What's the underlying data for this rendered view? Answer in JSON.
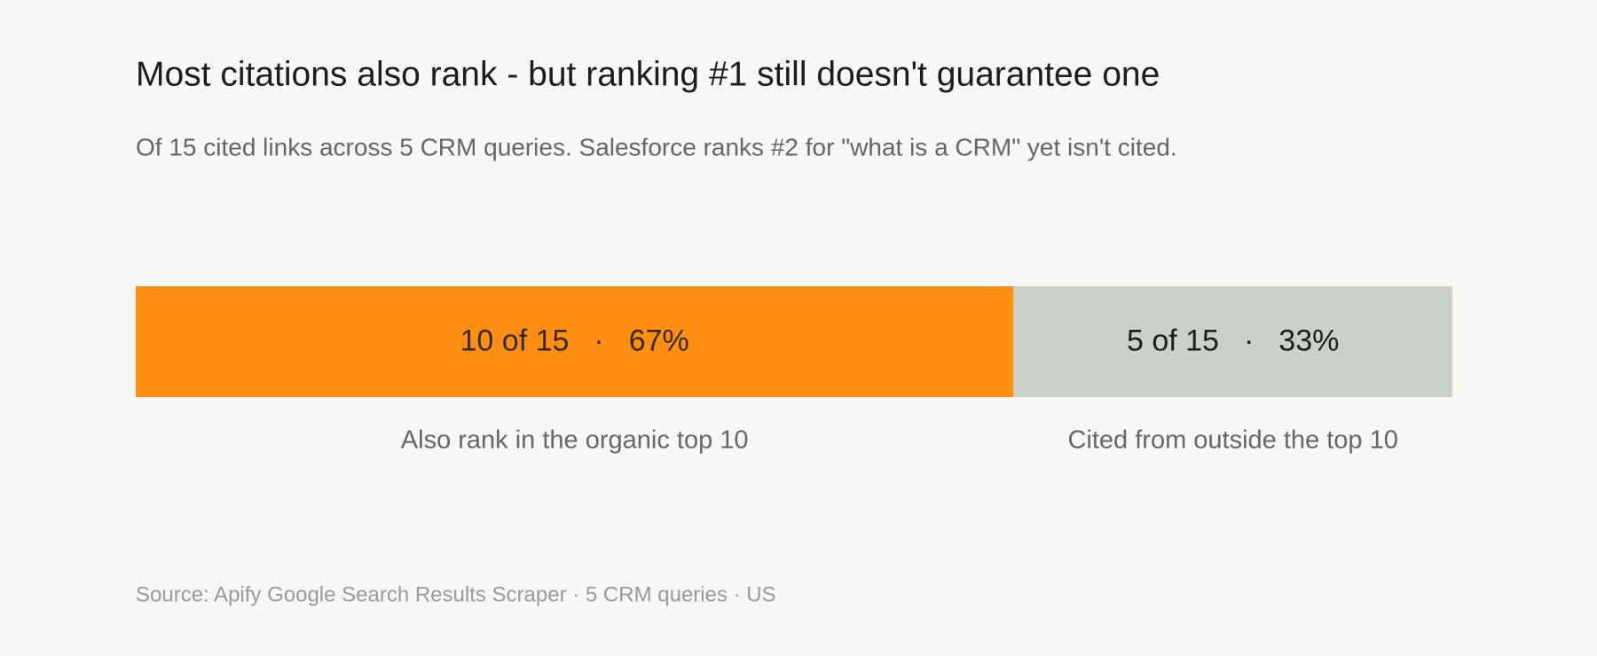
{
  "chart_data": {
    "type": "bar",
    "stacked": true,
    "orientation": "horizontal",
    "title": "Most citations also rank - but ranking #1 still doesn't guarantee one",
    "subtitle": "Of 15 cited links across 5 CRM queries. Salesforce ranks #2 for \"what is a CRM\" yet isn't cited.",
    "xlim": [
      0,
      15
    ],
    "separator": "·",
    "series": [
      {
        "name": "Also rank in the organic top 10",
        "color": "#ff8f12",
        "label_color": "#3b2a18",
        "values": [
          10
        ],
        "value_labels": [
          "10 of 15"
        ],
        "shares": [
          67
        ],
        "share_labels": [
          "67%"
        ]
      },
      {
        "name": "Cited from outside the top 10",
        "color": "#cbd0c8",
        "label_color": "#1f1f1f",
        "values": [
          5
        ],
        "value_labels": [
          "5 of 15"
        ],
        "shares": [
          33
        ],
        "share_labels": [
          "33%"
        ]
      }
    ],
    "source": "Source: Apify Google Search Results Scraper · 5 CRM queries · US"
  }
}
